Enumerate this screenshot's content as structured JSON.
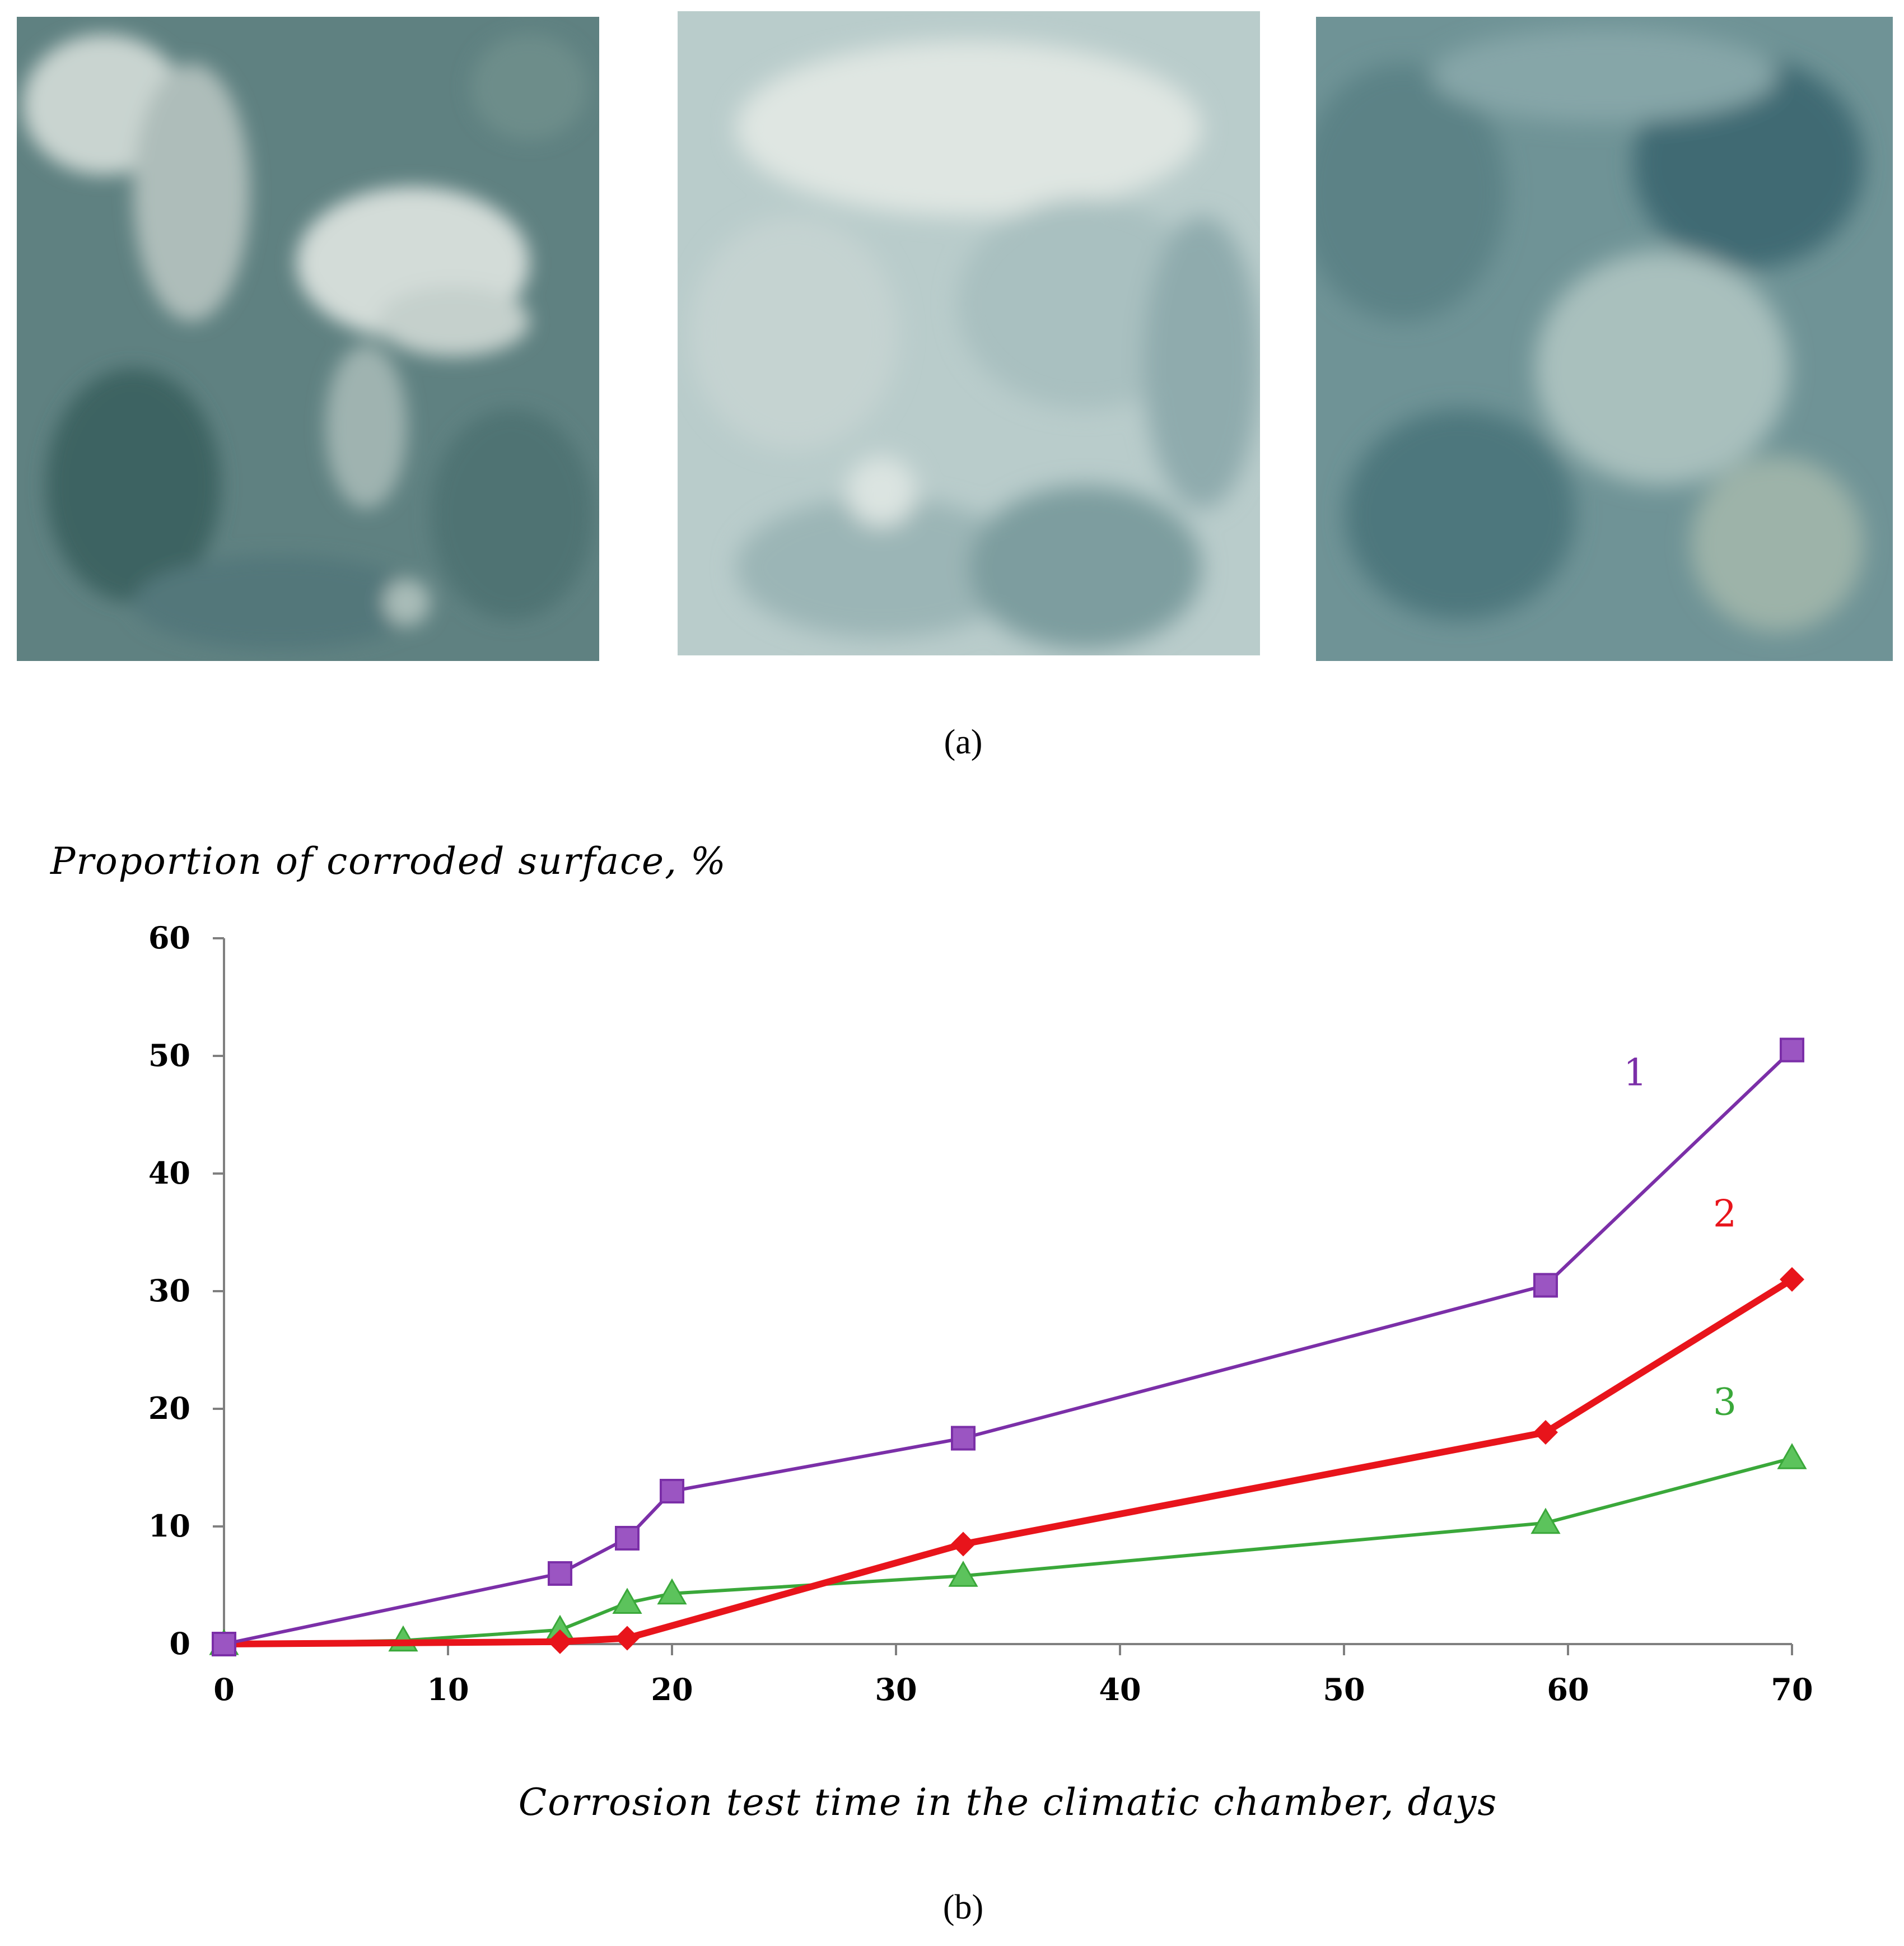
{
  "panels": {
    "a_label": "(a)",
    "b_label": "(b)"
  },
  "photos": [
    {
      "name": "sample-photo-1",
      "colors": {
        "base": "#5f8181",
        "light": "#c9d4d0",
        "dark": "#3e6462"
      }
    },
    {
      "name": "sample-photo-2",
      "colors": {
        "base": "#b9cccb",
        "light": "#dfe6e2",
        "dark": "#7d9d9f"
      }
    },
    {
      "name": "sample-photo-3",
      "colors": {
        "base": "#6f9396",
        "light": "#a9c0bd",
        "dark": "#3f6a73"
      }
    }
  ],
  "chart_data": {
    "type": "line",
    "ylabel": "Proportion of corroded surface, %",
    "xlabel": "Corrosion test time in the climatic chamber, days",
    "xlim": [
      0,
      70
    ],
    "ylim": [
      0,
      60
    ],
    "xticks": [
      "0",
      "10",
      "20",
      "30",
      "40",
      "50",
      "60",
      "70"
    ],
    "yticks": [
      "0",
      "10",
      "20",
      "30",
      "40",
      "50",
      "60"
    ],
    "grid": false,
    "series": [
      {
        "name": "1",
        "color": "#7b2fa8",
        "marker": "square",
        "points": [
          [
            0,
            0
          ],
          [
            15,
            6
          ],
          [
            18,
            9
          ],
          [
            20,
            13
          ],
          [
            33,
            17.5
          ],
          [
            59,
            30.5
          ],
          [
            70,
            50.5
          ]
        ],
        "label_at": [
          63,
          47.5
        ]
      },
      {
        "name": "2",
        "color": "#e8141b",
        "marker": "diamond",
        "points": [
          [
            0,
            0
          ],
          [
            15,
            0.2
          ],
          [
            18,
            0.5
          ],
          [
            33,
            8.5
          ],
          [
            59,
            18
          ],
          [
            70,
            31
          ]
        ],
        "label_at": [
          67,
          35.5
        ]
      },
      {
        "name": "3",
        "color": "#3aa83a",
        "marker": "triangle",
        "points": [
          [
            0,
            0
          ],
          [
            8,
            0.3
          ],
          [
            15,
            1.2
          ],
          [
            18,
            3.5
          ],
          [
            20,
            4.3
          ],
          [
            33,
            5.8
          ],
          [
            59,
            10.3
          ],
          [
            70,
            15.8
          ]
        ],
        "label_at": [
          67,
          19.5
        ]
      }
    ]
  }
}
